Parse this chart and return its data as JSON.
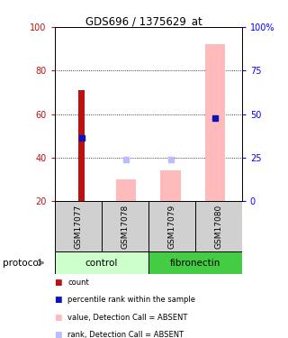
{
  "title": "GDS696 / 1375629_at",
  "samples": [
    "GSM17077",
    "GSM17078",
    "GSM17079",
    "GSM17080"
  ],
  "red_bar_values": [
    71,
    null,
    null,
    null
  ],
  "blue_dot_values": [
    49,
    null,
    null,
    58
  ],
  "pink_bar_values": [
    null,
    30,
    34,
    92
  ],
  "light_blue_dot_values": [
    null,
    39,
    39,
    null
  ],
  "ylim": [
    20,
    100
  ],
  "y_left_ticks": [
    20,
    40,
    60,
    80,
    100
  ],
  "y_right_ticks": [
    0,
    25,
    50,
    75,
    100
  ],
  "y_right_labels": [
    "0",
    "25",
    "50",
    "75",
    "100%"
  ],
  "red_color": "#bb1111",
  "blue_color": "#1111bb",
  "pink_color": "#ffbbbb",
  "light_blue_color": "#bbbbff",
  "control_color_light": "#ccffcc",
  "control_color_dark": "#55dd55",
  "fibronectin_color": "#44cc44",
  "gray_color": "#d0d0d0",
  "legend_items": [
    {
      "color": "#bb1111",
      "label": "count"
    },
    {
      "color": "#1111bb",
      "label": "percentile rank within the sample"
    },
    {
      "color": "#ffbbbb",
      "label": "value, Detection Call = ABSENT"
    },
    {
      "color": "#bbbbff",
      "label": "rank, Detection Call = ABSENT"
    }
  ]
}
